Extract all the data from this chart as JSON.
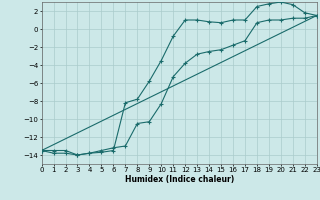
{
  "xlabel": "Humidex (Indice chaleur)",
  "bg_color": "#cce8e8",
  "grid_color": "#aacccc",
  "line_color": "#1a6b6b",
  "xlim": [
    0,
    23
  ],
  "ylim": [
    -15,
    3
  ],
  "xticks": [
    0,
    1,
    2,
    3,
    4,
    5,
    6,
    7,
    8,
    9,
    10,
    11,
    12,
    13,
    14,
    15,
    16,
    17,
    18,
    19,
    20,
    21,
    22,
    23
  ],
  "yticks": [
    2,
    0,
    -2,
    -4,
    -6,
    -8,
    -10,
    -12,
    -14
  ],
  "series1_x": [
    0,
    1,
    2,
    3,
    4,
    5,
    6,
    7,
    8,
    9,
    10,
    11,
    12,
    13,
    14,
    15,
    16,
    17,
    18,
    19,
    20,
    21,
    22,
    23
  ],
  "series1_y": [
    -13.5,
    -13.8,
    -13.8,
    -14.0,
    -13.8,
    -13.7,
    -13.5,
    -8.2,
    -7.8,
    -5.8,
    -3.5,
    -0.8,
    1.0,
    1.0,
    0.8,
    0.7,
    1.0,
    1.0,
    2.5,
    2.8,
    3.0,
    2.7,
    1.8,
    1.5
  ],
  "series2_x": [
    0,
    1,
    2,
    3,
    4,
    5,
    6,
    7,
    8,
    9,
    10,
    11,
    12,
    13,
    14,
    15,
    16,
    17,
    18,
    19,
    20,
    21,
    22,
    23
  ],
  "series2_y": [
    -13.5,
    -13.5,
    -13.5,
    -14.0,
    -13.8,
    -13.5,
    -13.2,
    -13.0,
    -10.5,
    -10.3,
    -8.3,
    -5.3,
    -3.8,
    -2.8,
    -2.5,
    -2.3,
    -1.8,
    -1.3,
    0.7,
    1.0,
    1.0,
    1.2,
    1.2,
    1.5
  ],
  "series3_x": [
    0,
    23
  ],
  "series3_y": [
    -13.5,
    1.5
  ]
}
